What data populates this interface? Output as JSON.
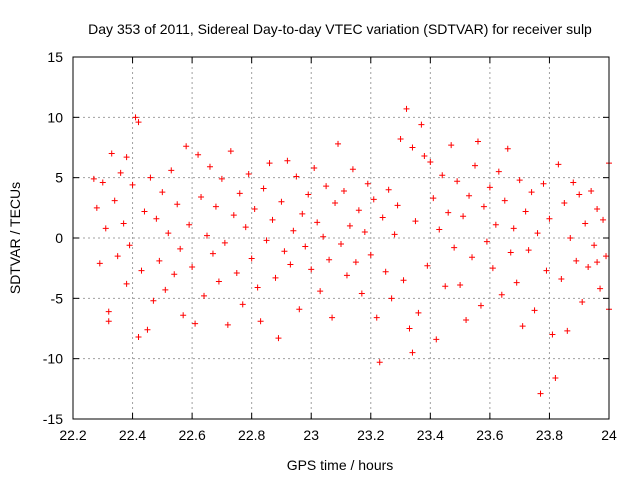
{
  "chart_data": {
    "type": "scatter",
    "title": "Day 353 of 2011, Sidereal Day-to-day VTEC variation (SDTVAR) for receiver sulp",
    "xlabel": "GPS time / hours",
    "ylabel": "SDTVAR / TECUs",
    "xlim": [
      22.2,
      24
    ],
    "ylim": [
      -15,
      15
    ],
    "xticks": [
      22.2,
      22.4,
      22.6,
      22.8,
      23,
      23.2,
      23.4,
      23.6,
      23.8,
      24
    ],
    "yticks": [
      -15,
      -10,
      -5,
      0,
      5,
      10,
      15
    ],
    "xtick_labels": [
      "22.2",
      "22.4",
      "22.6",
      "22.8",
      "23",
      "23.2",
      "23.4",
      "23.6",
      "23.8",
      "24"
    ],
    "ytick_labels": [
      "-15",
      "-10",
      "-5",
      "0",
      "5",
      "10",
      "15"
    ],
    "grid": true,
    "marker": "+",
    "series": [
      {
        "name": "SDTVAR",
        "color": "#ff0000",
        "points": [
          [
            22.27,
            4.9
          ],
          [
            22.28,
            2.5
          ],
          [
            22.29,
            -2.1
          ],
          [
            22.3,
            4.6
          ],
          [
            22.31,
            0.8
          ],
          [
            22.32,
            -6.1
          ],
          [
            22.32,
            -6.9
          ],
          [
            22.33,
            7.0
          ],
          [
            22.34,
            3.1
          ],
          [
            22.35,
            -1.5
          ],
          [
            22.36,
            5.4
          ],
          [
            22.37,
            1.2
          ],
          [
            22.38,
            -3.8
          ],
          [
            22.38,
            6.7
          ],
          [
            22.39,
            -0.6
          ],
          [
            22.4,
            4.4
          ],
          [
            22.41,
            10.0
          ],
          [
            22.42,
            9.6
          ],
          [
            22.42,
            -8.2
          ],
          [
            22.43,
            -2.7
          ],
          [
            22.44,
            2.2
          ],
          [
            22.45,
            -7.6
          ],
          [
            22.46,
            5.0
          ],
          [
            22.47,
            -5.2
          ],
          [
            22.48,
            1.6
          ],
          [
            22.49,
            -1.9
          ],
          [
            22.5,
            3.8
          ],
          [
            22.51,
            -4.3
          ],
          [
            22.52,
            0.4
          ],
          [
            22.53,
            5.6
          ],
          [
            22.54,
            -3.0
          ],
          [
            22.55,
            2.8
          ],
          [
            22.56,
            -0.9
          ],
          [
            22.57,
            -6.4
          ],
          [
            22.58,
            7.6
          ],
          [
            22.59,
            1.1
          ],
          [
            22.6,
            -2.4
          ],
          [
            22.61,
            -7.1
          ],
          [
            22.62,
            6.9
          ],
          [
            22.63,
            3.4
          ],
          [
            22.64,
            -4.8
          ],
          [
            22.65,
            0.2
          ],
          [
            22.66,
            5.9
          ],
          [
            22.67,
            -1.3
          ],
          [
            22.68,
            2.6
          ],
          [
            22.69,
            -3.6
          ],
          [
            22.7,
            4.9
          ],
          [
            22.71,
            -0.4
          ],
          [
            22.72,
            -7.2
          ],
          [
            22.73,
            7.2
          ],
          [
            22.74,
            1.9
          ],
          [
            22.75,
            -2.9
          ],
          [
            22.76,
            3.7
          ],
          [
            22.77,
            -5.5
          ],
          [
            22.78,
            0.9
          ],
          [
            22.79,
            5.3
          ],
          [
            22.8,
            -1.7
          ],
          [
            22.81,
            2.4
          ],
          [
            22.82,
            -4.1
          ],
          [
            22.83,
            -6.9
          ],
          [
            22.84,
            4.1
          ],
          [
            22.85,
            -0.2
          ],
          [
            22.86,
            6.2
          ],
          [
            22.87,
            1.5
          ],
          [
            22.88,
            -3.3
          ],
          [
            22.89,
            -8.3
          ],
          [
            22.9,
            3.0
          ],
          [
            22.91,
            -1.1
          ],
          [
            22.92,
            6.4
          ],
          [
            22.93,
            -2.2
          ],
          [
            22.94,
            0.6
          ],
          [
            22.95,
            5.1
          ],
          [
            22.96,
            -5.9
          ],
          [
            22.97,
            2.0
          ],
          [
            22.98,
            -0.7
          ],
          [
            22.99,
            3.6
          ],
          [
            23.0,
            -2.6
          ],
          [
            23.01,
            5.8
          ],
          [
            23.02,
            1.3
          ],
          [
            23.03,
            -4.4
          ],
          [
            23.04,
            0.1
          ],
          [
            23.05,
            4.3
          ],
          [
            23.06,
            -1.8
          ],
          [
            23.07,
            -6.6
          ],
          [
            23.08,
            2.9
          ],
          [
            23.09,
            7.8
          ],
          [
            23.1,
            -0.5
          ],
          [
            23.11,
            3.9
          ],
          [
            23.12,
            -3.1
          ],
          [
            23.13,
            1.0
          ],
          [
            23.14,
            5.7
          ],
          [
            23.15,
            -2.0
          ],
          [
            23.16,
            2.3
          ],
          [
            23.17,
            -4.6
          ],
          [
            23.18,
            0.5
          ],
          [
            23.19,
            4.5
          ],
          [
            23.2,
            -1.4
          ],
          [
            23.21,
            3.2
          ],
          [
            23.22,
            -6.6
          ],
          [
            23.23,
            -10.3
          ],
          [
            23.24,
            1.7
          ],
          [
            23.25,
            -2.8
          ],
          [
            23.26,
            4.0
          ],
          [
            23.27,
            -5.0
          ],
          [
            23.28,
            0.3
          ],
          [
            23.29,
            2.7
          ],
          [
            23.3,
            8.2
          ],
          [
            23.31,
            -3.5
          ],
          [
            23.32,
            10.7
          ],
          [
            23.33,
            -7.5
          ],
          [
            23.34,
            7.5
          ],
          [
            23.34,
            -9.5
          ],
          [
            23.35,
            1.4
          ],
          [
            23.36,
            -6.2
          ],
          [
            23.37,
            9.4
          ],
          [
            23.38,
            6.8
          ],
          [
            23.39,
            -2.3
          ],
          [
            23.4,
            6.3
          ],
          [
            23.41,
            3.3
          ],
          [
            23.42,
            -8.4
          ],
          [
            23.43,
            0.7
          ],
          [
            23.44,
            5.2
          ],
          [
            23.45,
            -4.0
          ],
          [
            23.46,
            2.1
          ],
          [
            23.47,
            7.7
          ],
          [
            23.48,
            -0.8
          ],
          [
            23.49,
            4.7
          ],
          [
            23.5,
            -3.9
          ],
          [
            23.51,
            1.8
          ],
          [
            23.52,
            -6.8
          ],
          [
            23.53,
            3.5
          ],
          [
            23.54,
            -1.6
          ],
          [
            23.55,
            6.0
          ],
          [
            23.56,
            8.0
          ],
          [
            23.57,
            -5.6
          ],
          [
            23.58,
            2.6
          ],
          [
            23.59,
            -0.3
          ],
          [
            23.6,
            4.2
          ],
          [
            23.61,
            -2.5
          ],
          [
            23.62,
            1.1
          ],
          [
            23.63,
            5.5
          ],
          [
            23.64,
            -4.7
          ],
          [
            23.65,
            3.1
          ],
          [
            23.66,
            7.4
          ],
          [
            23.67,
            -1.2
          ],
          [
            23.68,
            0.8
          ],
          [
            23.69,
            -3.7
          ],
          [
            23.7,
            4.8
          ],
          [
            23.71,
            -7.3
          ],
          [
            23.72,
            2.2
          ],
          [
            23.73,
            -1.0
          ],
          [
            23.74,
            3.8
          ],
          [
            23.75,
            -6.0
          ],
          [
            23.76,
            0.4
          ],
          [
            23.77,
            -12.9
          ],
          [
            23.78,
            4.5
          ],
          [
            23.79,
            -2.7
          ],
          [
            23.8,
            1.6
          ],
          [
            23.81,
            -8.0
          ],
          [
            23.82,
            -11.6
          ],
          [
            23.83,
            6.1
          ],
          [
            23.84,
            -3.4
          ],
          [
            23.85,
            2.9
          ],
          [
            23.86,
            -7.7
          ],
          [
            23.87,
            0.0
          ],
          [
            23.88,
            4.6
          ],
          [
            23.89,
            -1.9
          ],
          [
            23.9,
            3.6
          ],
          [
            23.91,
            -5.3
          ],
          [
            23.92,
            1.2
          ],
          [
            23.93,
            -2.4
          ],
          [
            23.94,
            3.9
          ],
          [
            23.95,
            -0.6
          ],
          [
            23.96,
            2.4
          ],
          [
            23.97,
            -4.2
          ],
          [
            23.98,
            1.5
          ],
          [
            23.99,
            -1.5
          ],
          [
            24.0,
            6.2
          ],
          [
            24.0,
            -5.9
          ],
          [
            23.96,
            -2.0
          ]
        ]
      }
    ]
  }
}
